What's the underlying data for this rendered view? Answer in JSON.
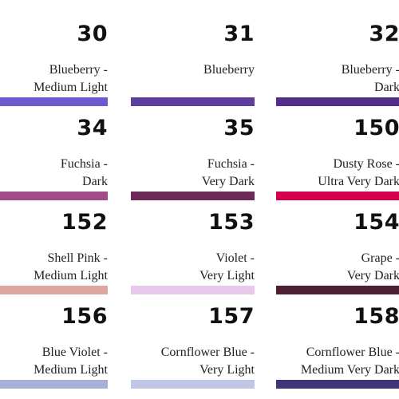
{
  "colors": [
    {
      "number": "30",
      "line1": "Blueberry -",
      "line2": "Medium Light",
      "hex": "#6b5bd0"
    },
    {
      "number": "31",
      "line1": "Blueberry",
      "line2": "",
      "hex": "#5d3d9e"
    },
    {
      "number": "32",
      "line1": "Blueberry -",
      "line2": "Dark",
      "hex": "#4f2e8a"
    },
    {
      "number": "34",
      "line1": "Fuchsia -",
      "line2": "Dark",
      "hex": "#a34a88"
    },
    {
      "number": "35",
      "line1": "Fuchsia -",
      "line2": "Very Dark",
      "hex": "#6c2a56"
    },
    {
      "number": "150",
      "line1": "Dusty Rose -",
      "line2": "Ultra Very Dark",
      "hex": "#d4004f"
    },
    {
      "number": "152",
      "line1": "Shell Pink -",
      "line2": "Medium Light",
      "hex": "#dea6a0"
    },
    {
      "number": "153",
      "line1": "Violet -",
      "line2": "Very Light",
      "hex": "#e8c9ec"
    },
    {
      "number": "154",
      "line1": "Grape -",
      "line2": "Very Dark",
      "hex": "#4d1f33"
    },
    {
      "number": "156",
      "line1": "Blue Violet -",
      "line2": "Medium Light",
      "hex": "#a9b0d8"
    },
    {
      "number": "157",
      "line1": "Cornflower Blue -",
      "line2": "Very Light",
      "hex": "#c0c6e6"
    },
    {
      "number": "158",
      "line1": "Cornflower Blue -",
      "line2": "Medium Very Dark",
      "hex": "#3c3675"
    }
  ]
}
